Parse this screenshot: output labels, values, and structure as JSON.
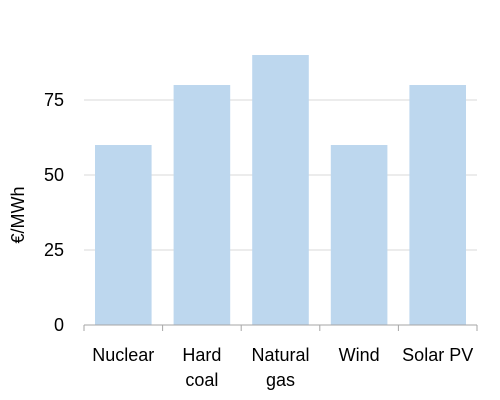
{
  "chart_data": {
    "type": "bar",
    "title": "",
    "xlabel": "",
    "ylabel": "€/MWh",
    "ylim": [
      0,
      100
    ],
    "yticks": [
      0,
      25,
      50,
      75
    ],
    "grid": true,
    "categories": [
      [
        "Nuclear"
      ],
      [
        "Hard",
        "coal"
      ],
      [
        "Natural",
        "gas"
      ],
      [
        "Wind"
      ],
      [
        "Solar PV"
      ]
    ],
    "values": [
      60,
      80,
      90,
      60,
      80
    ],
    "colors": {
      "bar": "#bdd7ee",
      "grid": "#d9d9d9",
      "axis": "#a6a6a6"
    }
  }
}
